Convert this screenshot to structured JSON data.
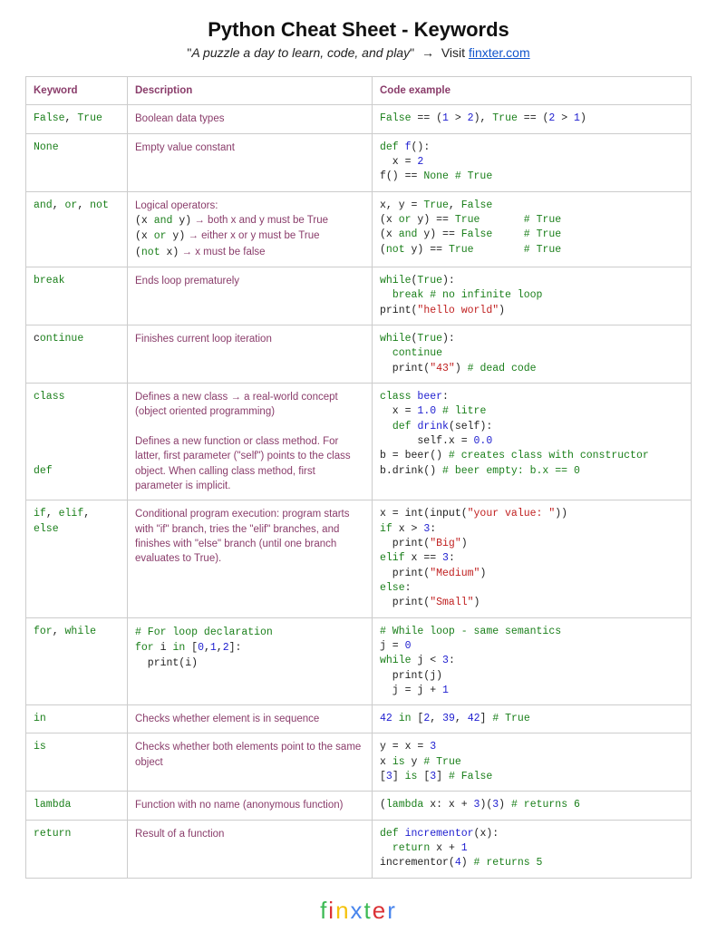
{
  "header": {
    "title": "Python Cheat Sheet - Keywords",
    "slogan": "A puzzle a day to learn, code, and play",
    "visit": "Visit",
    "link": "finxter.com"
  },
  "columns": {
    "c1": "Keyword",
    "c2": "Description",
    "c3": "Code example"
  },
  "rows": {
    "r1": {
      "kw": "False, True",
      "desc": "Boolean data types"
    },
    "r2": {
      "kw": "None",
      "desc": "Empty value constant"
    },
    "r3": {
      "kw": "and, or, not"
    },
    "r4": {
      "kw": "break",
      "desc": "Ends loop prematurely"
    },
    "r5": {
      "kw": "continue",
      "desc": "Finishes current loop iteration"
    },
    "r6a": {
      "kw": "class",
      "desc": "Defines a new class → a real-world concept (object oriented programming)"
    },
    "r6b": {
      "kw": "def",
      "desc": "Defines a new function or class method. For latter, first parameter (\"self\") points to the class object. When calling class method, first parameter is implicit."
    },
    "r7": {
      "kw": "if, elif, else",
      "desc": "Conditional program execution: program starts with \"if\" branch, tries the \"elif\" branches, and finishes with \"else\" branch (until one branch evaluates to True)."
    },
    "r8": {
      "kw": "for, while"
    },
    "r9": {
      "kw": "in",
      "desc": "Checks whether element is in sequence"
    },
    "r10": {
      "kw": "is",
      "desc": "Checks whether both elements point to the same object"
    },
    "r11": {
      "kw": "lambda",
      "desc": "Function with no name (anonymous function)"
    },
    "r12": {
      "kw": "return",
      "desc": "Result of a function"
    }
  },
  "logo": {
    "l1": "f",
    "l2": "i",
    "l3": "n",
    "l4": "x",
    "l5": "t",
    "l6": "e",
    "l7": "r"
  },
  "colors": {
    "keyword_green": "#1a7f1a",
    "purple": "#8a3d6b",
    "number_blue": "#2020d0",
    "string_red": "#c02020",
    "link_blue": "#1155cc",
    "border": "#cccccc",
    "background": "#ffffff"
  }
}
